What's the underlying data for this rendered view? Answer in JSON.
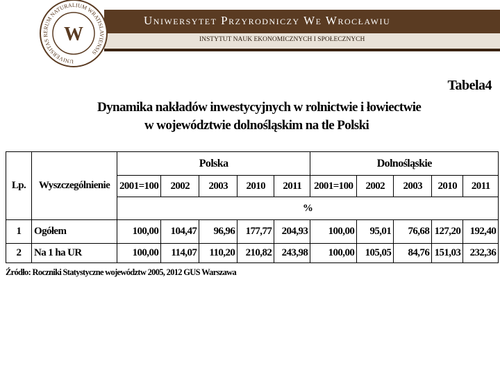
{
  "header": {
    "title": "Uniwersytet Przyrodniczy we Wrocławiu",
    "subtitle": "INSTYTUT NAUK EKONOMICZNYCH I SPOŁECZNYCH",
    "logo_text": "UNIVERSITAS RERUM NATURALIUM WRATISLAVIENSIS",
    "logo_letter": "W"
  },
  "table_label": "Tabela4",
  "heading": [
    "Dynamika nakładów inwestycyjnych w rolnictwie i łowiectwie",
    "w województwie dolnośląskim na tle Polski"
  ],
  "table": {
    "col_lp": "Lp.",
    "col_desc": "Wyszczególnienie",
    "groups": [
      "Polska",
      "Dolnośląskie"
    ],
    "years": [
      "2001=100",
      "2002",
      "2003",
      "2010",
      "2011",
      "2001=100",
      "2002",
      "2003",
      "2010",
      "2011"
    ],
    "unit": "%",
    "rows": [
      [
        "1",
        "Ogółem",
        "100,00",
        "104,47",
        "96,96",
        "177,77",
        "204,93",
        "100,00",
        "95,01",
        "76,68",
        "127,20",
        "192,40"
      ],
      [
        "2",
        "Na 1 ha UR",
        "100,00",
        "114,07",
        "110,20",
        "210,82",
        "243,98",
        "100,00",
        "105,05",
        "84,76",
        "151,03",
        "232,36"
      ]
    ]
  },
  "source": "Źródło: Roczniki Statystyczne województw 2005, 2012 GUS Warszawa"
}
